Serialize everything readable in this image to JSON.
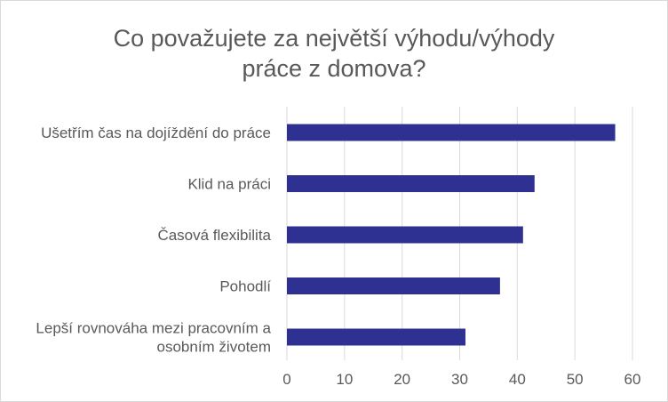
{
  "chart_data": {
    "type": "bar",
    "orientation": "horizontal",
    "title": [
      "Co považujete za největší výhodu/výhody",
      "práce z domova?"
    ],
    "categories": [
      [
        "Ušetřím čas na dojíždění do práce"
      ],
      [
        "Klid na práci"
      ],
      [
        "Časová flexibilita"
      ],
      [
        "Pohodlí"
      ],
      [
        "Lepší rovnováha mezi pracovním a",
        "osobním životem"
      ]
    ],
    "values": [
      57,
      43,
      41,
      37,
      31
    ],
    "xlim": [
      0,
      60
    ],
    "xticks": [
      "0",
      "10",
      "20",
      "30",
      "40",
      "50",
      "60"
    ],
    "grid": "vertical",
    "legend": "none",
    "colors": {
      "bar": "#2e3192",
      "grid": "#d9d9d9",
      "text": "#595959"
    }
  }
}
